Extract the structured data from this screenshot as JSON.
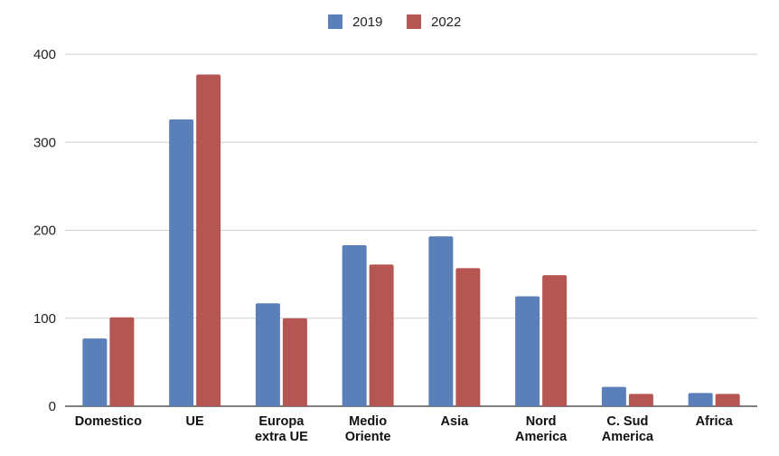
{
  "chart_data": {
    "type": "bar",
    "title": "",
    "xlabel": "",
    "ylabel": "",
    "categories": [
      [
        "Domestico"
      ],
      [
        "UE"
      ],
      [
        "Europa",
        "extra UE"
      ],
      [
        "Medio",
        "Oriente"
      ],
      [
        "Asia"
      ],
      [
        "Nord",
        "America"
      ],
      [
        "C. Sud",
        "America"
      ],
      [
        "Africa"
      ]
    ],
    "series": [
      {
        "name": "2019",
        "color": "#5b7fb9",
        "values": [
          77,
          326,
          117,
          183,
          193,
          125,
          22,
          15
        ]
      },
      {
        "name": "2022",
        "color": "#b55653",
        "values": [
          101,
          377,
          100,
          161,
          157,
          149,
          14,
          14
        ]
      }
    ],
    "ylim": [
      0,
      400
    ],
    "yticks": [
      0,
      100,
      200,
      300,
      400
    ],
    "grid": true,
    "legend": "top-center"
  }
}
